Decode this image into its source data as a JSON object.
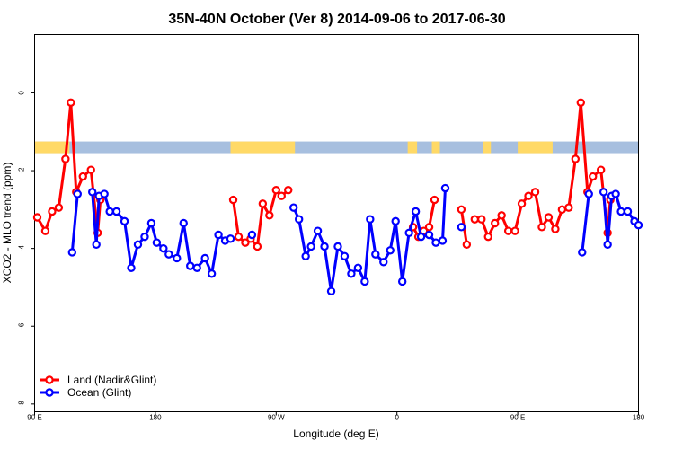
{
  "chart_data": {
    "type": "line",
    "title": "35N-40N October (Ver 8)   2014-09-06 to 2017-06-30",
    "xlabel": "Longitude (deg E)",
    "ylabel": "XCO2 - MLO trend (ppm)",
    "x_ticks": [
      {
        "value": 90,
        "label": "90 E"
      },
      {
        "value": 180,
        "label": "180"
      },
      {
        "value": 270,
        "label": "90 W"
      },
      {
        "value": 360,
        "label": "0"
      },
      {
        "value": 450,
        "label": "90 E"
      },
      {
        "value": 540,
        "label": "180"
      }
    ],
    "y_ticks": [
      {
        "value": 0,
        "label": "0"
      },
      {
        "value": -2,
        "label": "-2"
      },
      {
        "value": -4,
        "label": "-4"
      },
      {
        "value": -6,
        "label": "-6"
      },
      {
        "value": -8,
        "label": "-8"
      }
    ],
    "xlim": [
      90,
      540
    ],
    "ylim": [
      -8.2,
      1.5
    ],
    "grid": false,
    "legend_position": "bottom-left",
    "land_ocean_mask": {
      "y_range": [
        -1.55,
        -1.25
      ],
      "land_color": "#FFD966",
      "ocean_color": "#A7BFDF",
      "land_intervals": [
        [
          90,
          116
        ],
        [
          236,
          284
        ],
        [
          368,
          375
        ],
        [
          386,
          392
        ],
        [
          424,
          430
        ],
        [
          450,
          476
        ]
      ]
    },
    "series": [
      {
        "name": "Land (Nadir&Glint)",
        "color": "#FF0000",
        "segments": [
          [
            [
              92,
              -3.2
            ],
            [
              98,
              -3.55
            ],
            [
              103,
              -3.05
            ],
            [
              108,
              -2.95
            ],
            [
              113,
              -1.7
            ],
            [
              117,
              -0.25
            ],
            [
              121,
              -2.55
            ],
            [
              126,
              -2.15
            ],
            [
              132,
              -1.98
            ],
            [
              137,
              -3.6
            ],
            [
              139,
              -2.75
            ]
          ],
          [
            [
              238,
              -2.75
            ],
            [
              242,
              -3.7
            ],
            [
              247,
              -3.85
            ],
            [
              251,
              -3.75
            ],
            [
              256,
              -3.95
            ],
            [
              260,
              -2.85
            ],
            [
              265,
              -3.15
            ],
            [
              270,
              -2.5
            ],
            [
              274,
              -2.65
            ],
            [
              279,
              -2.5
            ]
          ],
          [
            [
              372,
              -3.45
            ],
            [
              376,
              -3.7
            ],
            [
              380,
              -3.55
            ],
            [
              384,
              -3.45
            ],
            [
              388,
              -2.75
            ]
          ],
          [
            [
              408,
              -3.0
            ],
            [
              412,
              -3.9
            ]
          ],
          [
            [
              418,
              -3.25
            ],
            [
              423,
              -3.25
            ],
            [
              428,
              -3.7
            ],
            [
              433,
              -3.35
            ],
            [
              438,
              -3.15
            ],
            [
              443,
              -3.55
            ],
            [
              448,
              -3.55
            ],
            [
              453,
              -2.85
            ],
            [
              458,
              -2.65
            ],
            [
              463,
              -2.55
            ],
            [
              468,
              -3.45
            ],
            [
              473,
              -3.2
            ],
            [
              478,
              -3.5
            ],
            [
              483,
              -3.0
            ],
            [
              488,
              -2.95
            ],
            [
              493,
              -1.7
            ],
            [
              497,
              -0.25
            ],
            [
              502,
              -2.55
            ],
            [
              506,
              -2.15
            ],
            [
              512,
              -1.98
            ],
            [
              517,
              -3.6
            ],
            [
              519,
              -2.75
            ]
          ]
        ]
      },
      {
        "name": "Ocean (Glint)",
        "color": "#0000FF",
        "segments": [
          [
            [
              118,
              -4.1
            ],
            [
              122,
              -2.6
            ]
          ],
          [
            [
              133,
              -2.55
            ],
            [
              136,
              -3.9
            ],
            [
              138,
              -2.65
            ],
            [
              142,
              -2.6
            ],
            [
              146,
              -3.05
            ],
            [
              151,
              -3.05
            ],
            [
              157,
              -3.3
            ],
            [
              162,
              -4.5
            ],
            [
              167,
              -3.9
            ],
            [
              172,
              -3.7
            ],
            [
              177,
              -3.35
            ],
            [
              181,
              -3.85
            ],
            [
              186,
              -4.0
            ],
            [
              190,
              -4.15
            ],
            [
              196,
              -4.25
            ],
            [
              201,
              -3.35
            ],
            [
              206,
              -4.45
            ],
            [
              211,
              -4.5
            ],
            [
              217,
              -4.25
            ],
            [
              222,
              -4.65
            ],
            [
              227,
              -3.65
            ],
            [
              232,
              -3.8
            ],
            [
              236,
              -3.75
            ]
          ],
          [
            [
              252,
              -3.65
            ]
          ],
          [
            [
              283,
              -2.95
            ],
            [
              287,
              -3.25
            ],
            [
              292,
              -4.2
            ],
            [
              296,
              -3.95
            ],
            [
              301,
              -3.55
            ],
            [
              306,
              -3.95
            ],
            [
              311,
              -5.1
            ],
            [
              316,
              -3.95
            ],
            [
              321,
              -4.2
            ],
            [
              326,
              -4.65
            ],
            [
              331,
              -4.5
            ],
            [
              336,
              -4.85
            ],
            [
              340,
              -3.25
            ],
            [
              344,
              -4.15
            ],
            [
              350,
              -4.35
            ],
            [
              355,
              -4.05
            ],
            [
              359,
              -3.3
            ],
            [
              364,
              -4.85
            ],
            [
              369,
              -3.6
            ],
            [
              374,
              -3.05
            ],
            [
              378,
              -3.7
            ],
            [
              384,
              -3.65
            ],
            [
              389,
              -3.85
            ],
            [
              394,
              -3.8
            ],
            [
              396,
              -2.45
            ]
          ],
          [
            [
              408,
              -3.45
            ]
          ],
          [
            [
              498,
              -4.1
            ],
            [
              503,
              -2.6
            ]
          ],
          [
            [
              514,
              -2.55
            ],
            [
              517,
              -3.9
            ],
            [
              520,
              -2.65
            ],
            [
              523,
              -2.6
            ],
            [
              527,
              -3.05
            ],
            [
              532,
              -3.05
            ],
            [
              537,
              -3.3
            ],
            [
              540,
              -3.4
            ]
          ]
        ]
      }
    ]
  }
}
